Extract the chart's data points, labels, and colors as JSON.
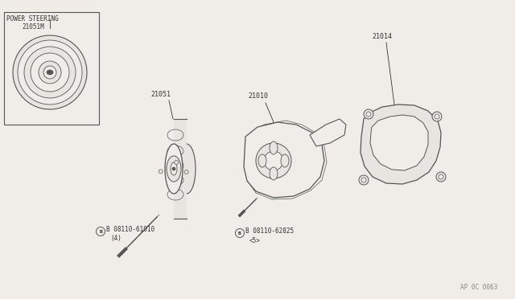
{
  "bg_color": "#f0ede8",
  "line_color": "#333333",
  "watermark": "AP 0C 0063",
  "labels": {
    "power_steering_line1": "POWER STEERING",
    "power_steering_line2": "21051M",
    "part_21014": "21014",
    "part_21010": "21010",
    "part_21051": "21051",
    "bolt1_line1": "B 08110-61010",
    "bolt1_line2": "(4)",
    "bolt2_line1": "B 08110-62825",
    "bolt2_line2": "<5>"
  },
  "colors": {
    "part_fill": "#f0ede8",
    "part_stroke": "#555555",
    "part_fill_light": "#e8e5e0",
    "gasket_fill": "#e8e5e0"
  }
}
